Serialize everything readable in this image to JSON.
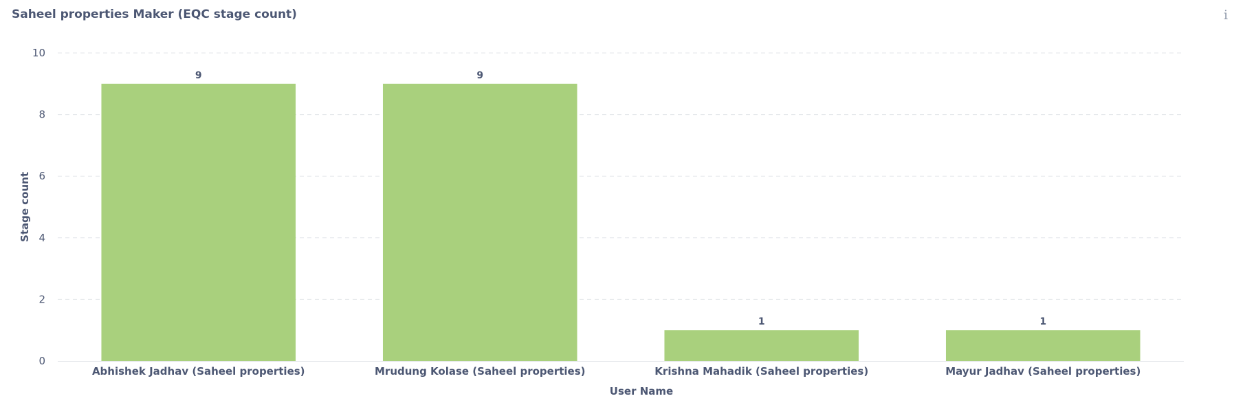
{
  "card": {
    "title": "Saheel properties Maker (EQC stage count)",
    "info_icon": "info-icon"
  },
  "chart_data": {
    "type": "bar",
    "title": "Saheel properties Maker (EQC stage count)",
    "xlabel": "User Name",
    "ylabel": "Stage count",
    "categories": [
      "Abhishek Jadhav (Saheel properties)",
      "Mrudung Kolase (Saheel properties)",
      "Krishna Mahadik (Saheel properties)",
      "Mayur Jadhav (Saheel properties)"
    ],
    "values": [
      9,
      9,
      1,
      1
    ],
    "data_labels": [
      "9",
      "9",
      "1",
      "1"
    ],
    "ylim": [
      0,
      10
    ],
    "yticks": [
      0,
      2,
      4,
      6,
      8,
      10
    ],
    "grid": true,
    "legend": "none",
    "colors": {
      "bar": "#a9d07d",
      "grid": "#e3e6ea",
      "text": "#4c5773"
    }
  }
}
